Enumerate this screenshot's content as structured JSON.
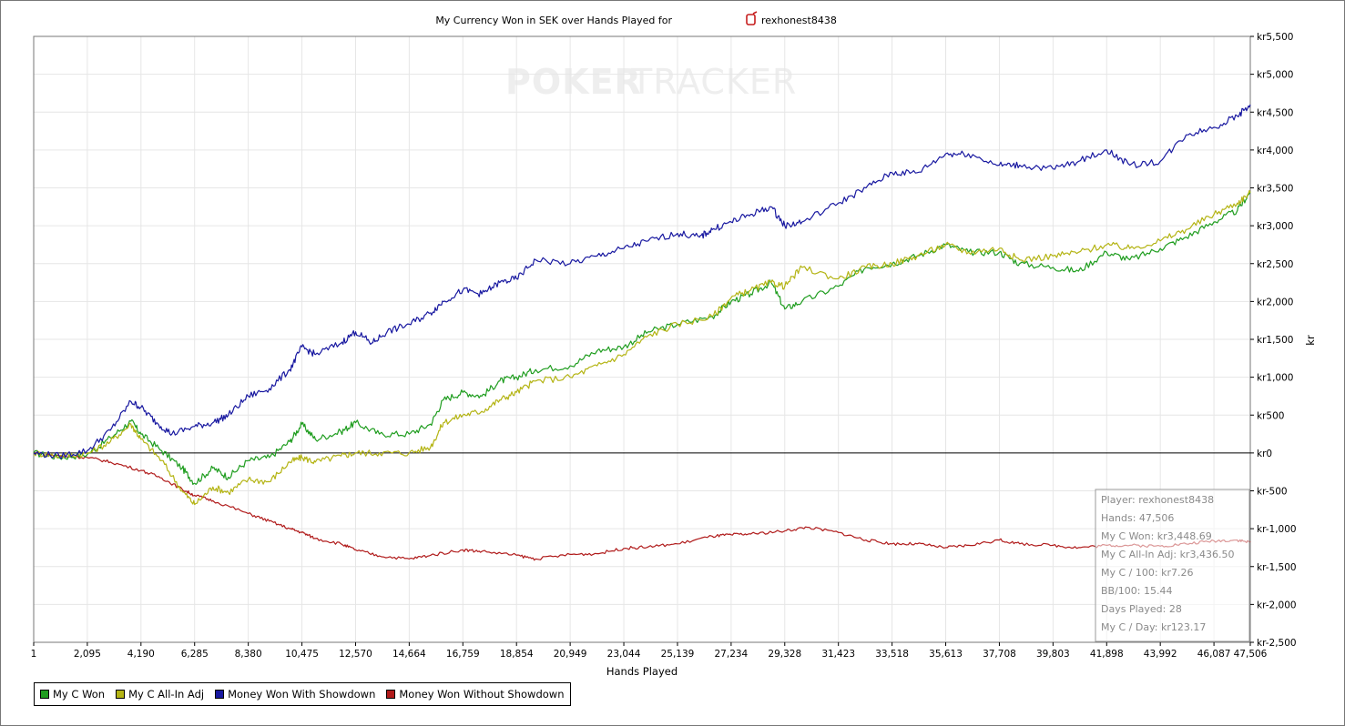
{
  "chart_data": {
    "type": "line",
    "title": "My Currency Won in SEK over Hands Played for",
    "player_name": "rexhonest8438",
    "watermark_left": "POKER",
    "watermark_right": "TRACKER",
    "xlabel": "Hands Played",
    "ylabel": "kr",
    "xlim": [
      1,
      47506
    ],
    "ylim": [
      -2500,
      5500
    ],
    "x_ticks": [
      1,
      2095,
      4190,
      6285,
      8380,
      10475,
      12570,
      14664,
      16759,
      18854,
      20949,
      23044,
      25139,
      27234,
      29328,
      31423,
      33518,
      35613,
      37708,
      39803,
      41898,
      43992,
      46087,
      47506
    ],
    "x_tick_labels": [
      "1",
      "2,095",
      "4,190",
      "6,285",
      "8,380",
      "10,475",
      "12,570",
      "14,664",
      "16,759",
      "18,854",
      "20,949",
      "23,044",
      "25,139",
      "27,234",
      "29,328",
      "31,423",
      "33,518",
      "35,613",
      "37,708",
      "39,803",
      "41,898",
      "43,992",
      "46,087",
      "47,506"
    ],
    "y_ticks": [
      5500,
      5000,
      4500,
      4000,
      3500,
      3000,
      2500,
      2000,
      1500,
      1000,
      500,
      0,
      -500,
      -1000,
      -1500,
      -2000,
      -2500
    ],
    "y_tick_labels": [
      "kr5,500",
      "kr5,000",
      "kr4,500",
      "kr4,000",
      "kr3,500",
      "kr3,000",
      "kr2,500",
      "kr2,000",
      "kr1,500",
      "kr1,000",
      "kr500",
      "kr0",
      "kr-500",
      "kr-1,000",
      "kr-1,500",
      "kr-2,000",
      "kr-2,500"
    ],
    "grid": true,
    "legend_position": "bottom-left",
    "series": [
      {
        "name": "My C Won",
        "color": "#1f9d1f",
        "points": [
          [
            1,
            0
          ],
          [
            1000,
            -60
          ],
          [
            2095,
            -20
          ],
          [
            3000,
            200
          ],
          [
            3800,
            420
          ],
          [
            4190,
            250
          ],
          [
            5000,
            30
          ],
          [
            5800,
            -200
          ],
          [
            6285,
            -400
          ],
          [
            7000,
            -200
          ],
          [
            7600,
            -320
          ],
          [
            8380,
            -100
          ],
          [
            9200,
            -60
          ],
          [
            10000,
            150
          ],
          [
            10475,
            380
          ],
          [
            11000,
            180
          ],
          [
            12000,
            280
          ],
          [
            12570,
            400
          ],
          [
            13500,
            250
          ],
          [
            14664,
            250
          ],
          [
            15500,
            380
          ],
          [
            16000,
            700
          ],
          [
            16759,
            800
          ],
          [
            17500,
            750
          ],
          [
            18200,
            950
          ],
          [
            18854,
            1000
          ],
          [
            19600,
            1100
          ],
          [
            20949,
            1150
          ],
          [
            22000,
            1350
          ],
          [
            23044,
            1400
          ],
          [
            24000,
            1600
          ],
          [
            25139,
            1700
          ],
          [
            26500,
            1800
          ],
          [
            27234,
            2000
          ],
          [
            28000,
            2100
          ],
          [
            28800,
            2250
          ],
          [
            29328,
            1900
          ],
          [
            30000,
            2000
          ],
          [
            31423,
            2200
          ],
          [
            32500,
            2450
          ],
          [
            33518,
            2500
          ],
          [
            34500,
            2600
          ],
          [
            35613,
            2750
          ],
          [
            36500,
            2650
          ],
          [
            37708,
            2650
          ],
          [
            38500,
            2500
          ],
          [
            39803,
            2450
          ],
          [
            40800,
            2400
          ],
          [
            41898,
            2650
          ],
          [
            42800,
            2550
          ],
          [
            43992,
            2700
          ],
          [
            45000,
            2850
          ],
          [
            46087,
            3050
          ],
          [
            47000,
            3200
          ],
          [
            47506,
            3448.69
          ]
        ]
      },
      {
        "name": "My C All-In Adj",
        "color": "#b4b414",
        "points": [
          [
            1,
            0
          ],
          [
            1000,
            -40
          ],
          [
            2095,
            -10
          ],
          [
            3000,
            150
          ],
          [
            3800,
            380
          ],
          [
            4190,
            180
          ],
          [
            5000,
            -100
          ],
          [
            5800,
            -500
          ],
          [
            6285,
            -680
          ],
          [
            7000,
            -450
          ],
          [
            7600,
            -520
          ],
          [
            8380,
            -350
          ],
          [
            9200,
            -380
          ],
          [
            10000,
            -120
          ],
          [
            10475,
            -60
          ],
          [
            11000,
            -120
          ],
          [
            12000,
            -40
          ],
          [
            12570,
            0
          ],
          [
            13500,
            0
          ],
          [
            14664,
            0
          ],
          [
            15500,
            80
          ],
          [
            16000,
            400
          ],
          [
            16759,
            500
          ],
          [
            17500,
            550
          ],
          [
            18200,
            700
          ],
          [
            18854,
            800
          ],
          [
            19600,
            950
          ],
          [
            20949,
            1000
          ],
          [
            22000,
            1150
          ],
          [
            23044,
            1300
          ],
          [
            24000,
            1550
          ],
          [
            25139,
            1700
          ],
          [
            26500,
            1800
          ],
          [
            27234,
            2050
          ],
          [
            28000,
            2150
          ],
          [
            28800,
            2250
          ],
          [
            29328,
            2200
          ],
          [
            30000,
            2450
          ],
          [
            31423,
            2300
          ],
          [
            32500,
            2450
          ],
          [
            33518,
            2500
          ],
          [
            34500,
            2600
          ],
          [
            35613,
            2750
          ],
          [
            36500,
            2650
          ],
          [
            37708,
            2700
          ],
          [
            38500,
            2550
          ],
          [
            39803,
            2600
          ],
          [
            40800,
            2650
          ],
          [
            41898,
            2750
          ],
          [
            42800,
            2700
          ],
          [
            43992,
            2800
          ],
          [
            45000,
            2950
          ],
          [
            46087,
            3150
          ],
          [
            47000,
            3300
          ],
          [
            47506,
            3436.5
          ]
        ]
      },
      {
        "name": "Money Won With Showdown",
        "color": "#1818a0",
        "points": [
          [
            1,
            0
          ],
          [
            1000,
            -40
          ],
          [
            2095,
            30
          ],
          [
            3000,
            300
          ],
          [
            3800,
            680
          ],
          [
            4190,
            600
          ],
          [
            4800,
            400
          ],
          [
            5400,
            250
          ],
          [
            6285,
            350
          ],
          [
            7000,
            400
          ],
          [
            7600,
            500
          ],
          [
            8380,
            750
          ],
          [
            9200,
            850
          ],
          [
            10000,
            1100
          ],
          [
            10475,
            1400
          ],
          [
            11000,
            1300
          ],
          [
            12000,
            1450
          ],
          [
            12570,
            1600
          ],
          [
            13200,
            1450
          ],
          [
            13800,
            1600
          ],
          [
            14664,
            1700
          ],
          [
            15500,
            1850
          ],
          [
            16000,
            2000
          ],
          [
            16759,
            2150
          ],
          [
            17500,
            2100
          ],
          [
            18200,
            2250
          ],
          [
            18854,
            2300
          ],
          [
            19600,
            2550
          ],
          [
            20949,
            2500
          ],
          [
            22000,
            2600
          ],
          [
            23044,
            2700
          ],
          [
            24000,
            2800
          ],
          [
            25139,
            2900
          ],
          [
            26000,
            2850
          ],
          [
            26500,
            2950
          ],
          [
            27234,
            3050
          ],
          [
            28000,
            3150
          ],
          [
            28800,
            3250
          ],
          [
            29328,
            3000
          ],
          [
            30000,
            3050
          ],
          [
            31423,
            3300
          ],
          [
            32500,
            3500
          ],
          [
            33518,
            3700
          ],
          [
            34500,
            3700
          ],
          [
            35613,
            3950
          ],
          [
            36500,
            3950
          ],
          [
            37708,
            3800
          ],
          [
            38500,
            3800
          ],
          [
            39803,
            3750
          ],
          [
            40800,
            3850
          ],
          [
            41898,
            4000
          ],
          [
            42800,
            3800
          ],
          [
            43992,
            3850
          ],
          [
            45000,
            4200
          ],
          [
            46087,
            4300
          ],
          [
            47000,
            4450
          ],
          [
            47506,
            4600
          ]
        ]
      },
      {
        "name": "Money Won Without Showdown",
        "color": "#b01a1a",
        "points": [
          [
            1,
            0
          ],
          [
            1000,
            -40
          ],
          [
            2095,
            -60
          ],
          [
            3000,
            -120
          ],
          [
            4190,
            -230
          ],
          [
            5000,
            -330
          ],
          [
            5800,
            -480
          ],
          [
            6285,
            -560
          ],
          [
            7000,
            -630
          ],
          [
            8380,
            -800
          ],
          [
            9200,
            -900
          ],
          [
            10000,
            -1000
          ],
          [
            10475,
            -1050
          ],
          [
            11000,
            -1130
          ],
          [
            12000,
            -1200
          ],
          [
            12570,
            -1280
          ],
          [
            13500,
            -1360
          ],
          [
            14664,
            -1400
          ],
          [
            15500,
            -1350
          ],
          [
            16759,
            -1280
          ],
          [
            17500,
            -1300
          ],
          [
            18854,
            -1350
          ],
          [
            19600,
            -1400
          ],
          [
            20949,
            -1340
          ],
          [
            22000,
            -1330
          ],
          [
            23044,
            -1260
          ],
          [
            24000,
            -1240
          ],
          [
            25139,
            -1200
          ],
          [
            26500,
            -1100
          ],
          [
            27234,
            -1080
          ],
          [
            28000,
            -1070
          ],
          [
            29328,
            -1030
          ],
          [
            30200,
            -980
          ],
          [
            31423,
            -1050
          ],
          [
            32500,
            -1150
          ],
          [
            33518,
            -1200
          ],
          [
            34500,
            -1200
          ],
          [
            35613,
            -1250
          ],
          [
            36500,
            -1220
          ],
          [
            37708,
            -1150
          ],
          [
            38500,
            -1200
          ],
          [
            39803,
            -1220
          ],
          [
            40800,
            -1250
          ],
          [
            41898,
            -1220
          ],
          [
            42800,
            -1220
          ],
          [
            43992,
            -1230
          ],
          [
            45000,
            -1200
          ],
          [
            46087,
            -1160
          ],
          [
            47000,
            -1150
          ],
          [
            47506,
            -1180
          ]
        ]
      }
    ]
  },
  "stats": {
    "player": "Player: rexhonest8438",
    "hands": "Hands: 47,506",
    "won": "My C Won: kr3,448.69",
    "allin": "My C All-In Adj: kr3,436.50",
    "per100": "My C / 100: kr7.26",
    "bb100": "BB/100: 15.44",
    "days": "Days Played: 28",
    "perday": "My C / Day: kr123.17"
  },
  "legend": {
    "items": [
      {
        "label": "My C Won",
        "color": "#1f9d1f"
      },
      {
        "label": "My C All-In Adj",
        "color": "#b4b414"
      },
      {
        "label": "Money Won With Showdown",
        "color": "#1818a0"
      },
      {
        "label": "Money Won Without Showdown",
        "color": "#b01a1a"
      }
    ]
  }
}
